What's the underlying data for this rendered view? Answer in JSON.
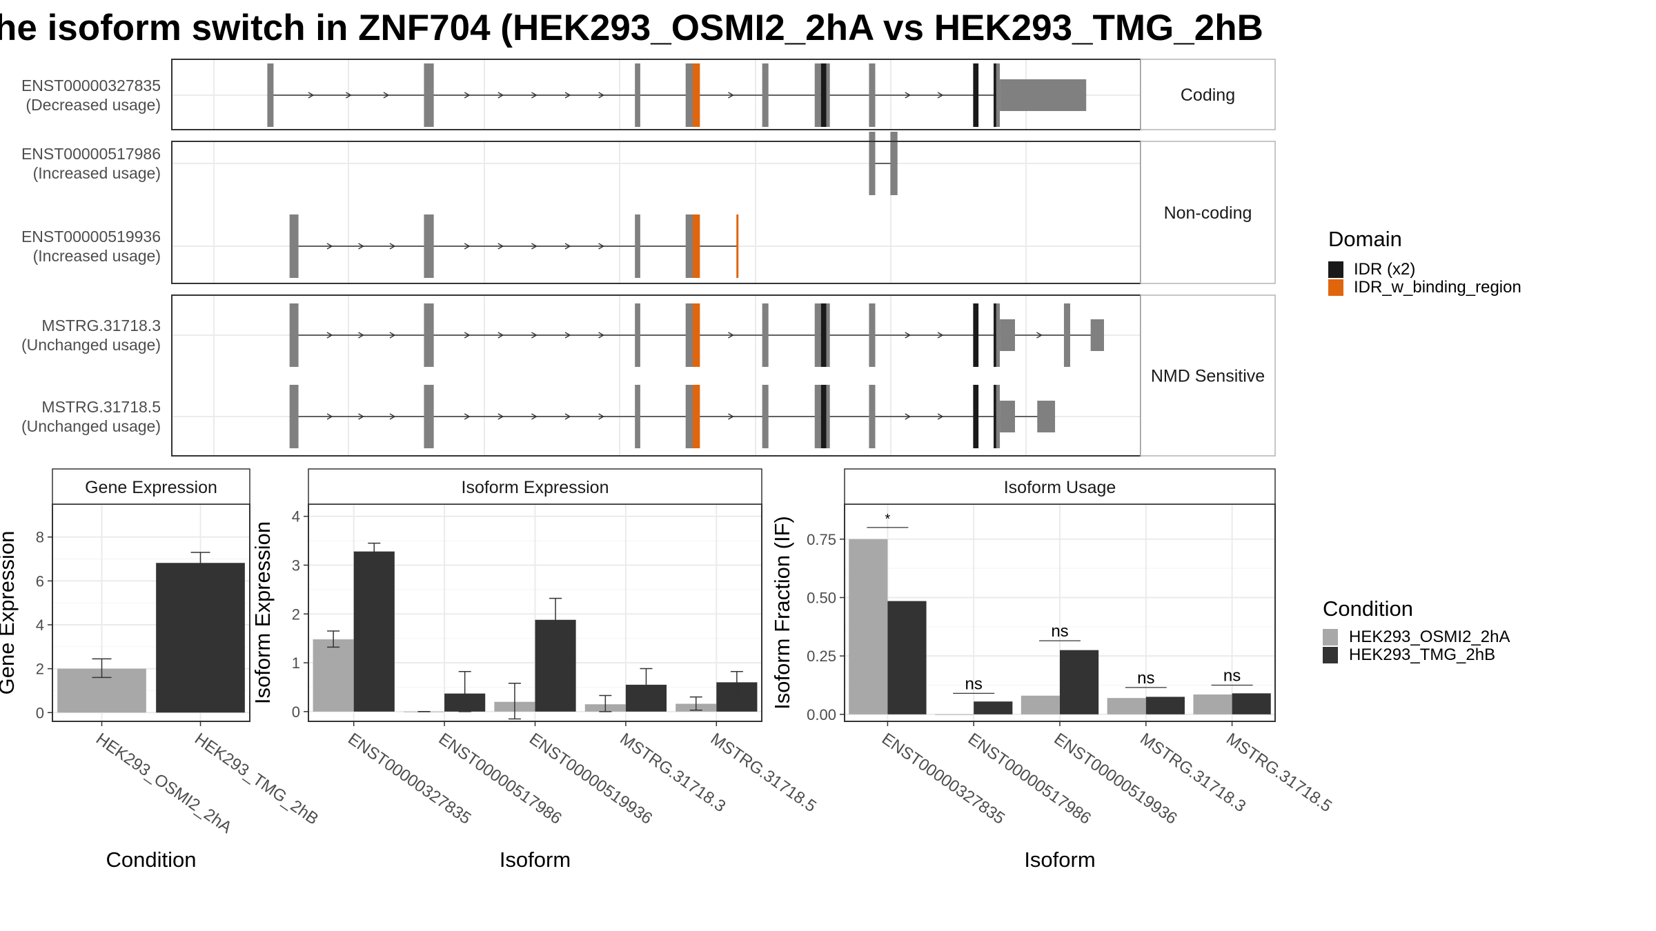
{
  "title": "he isoform switch in ZNF704 (HEK293_OSMI2_2hA vs HEK293_TMG_2hB",
  "colors": {
    "exon": "#808080",
    "idr": "#1a1a1a",
    "idr_binding": "#e0650d",
    "cond_a": "#a8a8a8",
    "cond_b": "#333333",
    "grid": "#ebebeb",
    "border": "#333333",
    "strip_bg": "#ffffff"
  },
  "structure": {
    "domain_legend": {
      "title": "Domain",
      "items": [
        {
          "label": "IDR (x2)",
          "color": "#1a1a1a"
        },
        {
          "label": "IDR_w_binding_region",
          "color": "#e0650d"
        }
      ]
    },
    "groups": [
      {
        "strip": "Coding",
        "isoforms": [
          {
            "id": "ENST00000327835",
            "usage": "(Decreased usage)",
            "exons": [
              [
                0.06,
                0.067,
                "e"
              ],
              [
                0.236,
                0.243,
                "e"
              ],
              [
                0.243,
                0.247,
                "c"
              ],
              [
                0.473,
                0.479,
                "e"
              ],
              [
                0.53,
                0.538,
                "e"
              ],
              [
                0.538,
                0.546,
                "o"
              ],
              [
                0.616,
                0.623,
                "e"
              ],
              [
                0.675,
                0.682,
                "e"
              ],
              [
                0.682,
                0.688,
                "i"
              ],
              [
                0.688,
                0.692,
                "c"
              ],
              [
                0.736,
                0.743,
                "c"
              ],
              [
                0.853,
                0.859,
                "i"
              ],
              [
                0.876,
                0.879,
                "i"
              ],
              [
                0.879,
                0.883,
                "c"
              ],
              [
                0.883,
                0.98,
                "u"
              ]
            ]
          }
        ]
      },
      {
        "strip": "Non-coding",
        "isoforms": [
          {
            "id": "ENST00000517986",
            "usage": "(Increased usage)",
            "exons": [
              [
                0.736,
                0.743,
                "e"
              ],
              [
                0.76,
                0.768,
                "e"
              ]
            ]
          },
          {
            "id": "ENST00000519936",
            "usage": "(Increased usage)",
            "exons": [
              [
                0.085,
                0.095,
                "e"
              ],
              [
                0.236,
                0.243,
                "e"
              ],
              [
                0.243,
                0.247,
                "c"
              ],
              [
                0.473,
                0.479,
                "e"
              ],
              [
                0.53,
                0.538,
                "e"
              ],
              [
                0.538,
                0.546,
                "o"
              ],
              [
                0.587,
                0.589,
                "o"
              ]
            ]
          }
        ]
      },
      {
        "strip": "NMD Sensitive",
        "isoforms": [
          {
            "id": "MSTRG.31718.3",
            "usage": "(Unchanged usage)",
            "exons": [
              [
                0.085,
                0.095,
                "e"
              ],
              [
                0.236,
                0.243,
                "e"
              ],
              [
                0.243,
                0.247,
                "c"
              ],
              [
                0.473,
                0.479,
                "e"
              ],
              [
                0.53,
                0.538,
                "e"
              ],
              [
                0.538,
                0.546,
                "o"
              ],
              [
                0.616,
                0.623,
                "e"
              ],
              [
                0.675,
                0.682,
                "e"
              ],
              [
                0.682,
                0.688,
                "i"
              ],
              [
                0.688,
                0.692,
                "c"
              ],
              [
                0.736,
                0.743,
                "c"
              ],
              [
                0.853,
                0.859,
                "i"
              ],
              [
                0.876,
                0.879,
                "i"
              ],
              [
                0.879,
                0.883,
                "c"
              ],
              [
                0.883,
                0.9,
                "u"
              ],
              [
                0.955,
                0.962,
                "e"
              ],
              [
                0.985,
                1.0,
                "u"
              ]
            ]
          },
          {
            "id": "MSTRG.31718.5",
            "usage": "(Unchanged usage)",
            "exons": [
              [
                0.085,
                0.095,
                "e"
              ],
              [
                0.236,
                0.243,
                "e"
              ],
              [
                0.243,
                0.247,
                "c"
              ],
              [
                0.473,
                0.479,
                "e"
              ],
              [
                0.53,
                0.538,
                "e"
              ],
              [
                0.538,
                0.546,
                "o"
              ],
              [
                0.616,
                0.623,
                "e"
              ],
              [
                0.675,
                0.682,
                "e"
              ],
              [
                0.682,
                0.688,
                "i"
              ],
              [
                0.688,
                0.692,
                "c"
              ],
              [
                0.736,
                0.743,
                "c"
              ],
              [
                0.853,
                0.859,
                "i"
              ],
              [
                0.876,
                0.879,
                "i"
              ],
              [
                0.879,
                0.883,
                "c"
              ],
              [
                0.883,
                0.9,
                "u"
              ],
              [
                0.925,
                0.945,
                "u"
              ]
            ]
          }
        ]
      }
    ]
  },
  "condition_legend": {
    "title": "Condition",
    "items": [
      {
        "label": "HEK293_OSMI2_2hA",
        "color": "#a8a8a8"
      },
      {
        "label": "HEK293_TMG_2hB",
        "color": "#333333"
      }
    ]
  },
  "chart_data": [
    {
      "type": "bar",
      "title": "Gene Expression",
      "xlabel": "Condition",
      "ylabel": "Gene Expression",
      "ylim": [
        -0.4,
        9.5
      ],
      "yticks": [
        0,
        2,
        4,
        6,
        8
      ],
      "yticklabels": [
        "0",
        "2",
        "4",
        "6",
        "8"
      ],
      "categories": [
        "HEK293_OSMI2_2hA",
        "HEK293_TMG_2hB"
      ],
      "values": [
        2.0,
        6.82
      ],
      "err_low": [
        1.6,
        6.35
      ],
      "err_high": [
        2.45,
        7.3
      ]
    },
    {
      "type": "bar",
      "title": "Isoform Expression",
      "xlabel": "Isoform",
      "ylabel": "Isoform Expression",
      "ylim": [
        -0.2,
        4.25
      ],
      "yticks": [
        0,
        1,
        2,
        3,
        4
      ],
      "yticklabels": [
        "0",
        "1",
        "2",
        "3",
        "4"
      ],
      "categories": [
        "ENST00000327835",
        "ENST00000517986",
        "ENST00000519936",
        "MSTRG.31718.3",
        "MSTRG.31718.5"
      ],
      "series": [
        {
          "name": "HEK293_OSMI2_2hA",
          "values": [
            1.48,
            0.0,
            0.2,
            0.15,
            0.16
          ],
          "err_low": [
            1.32,
            0.0,
            -0.15,
            0.0,
            0.03
          ],
          "err_high": [
            1.65,
            0.0,
            0.58,
            0.33,
            0.3
          ]
        },
        {
          "name": "HEK293_TMG_2hB",
          "values": [
            3.28,
            0.37,
            1.88,
            0.55,
            0.6
          ],
          "err_low": [
            3.1,
            0.0,
            1.45,
            0.2,
            0.38
          ],
          "err_high": [
            3.45,
            0.82,
            2.32,
            0.88,
            0.82
          ]
        }
      ]
    },
    {
      "type": "bar",
      "title": "Isoform Usage",
      "xlabel": "Isoform",
      "ylabel": "Isoform Fraction (IF)",
      "ylim": [
        -0.03,
        0.9
      ],
      "yticks": [
        0,
        0.25,
        0.5,
        0.75
      ],
      "yticklabels": [
        "0.00",
        "0.25",
        "0.50",
        "0.75"
      ],
      "categories": [
        "ENST00000327835",
        "ENST00000517986",
        "ENST00000519936",
        "MSTRG.31718.3",
        "MSTRG.31718.5"
      ],
      "series": [
        {
          "name": "HEK293_OSMI2_2hA",
          "values": [
            0.75,
            0.0,
            0.08,
            0.07,
            0.085
          ]
        },
        {
          "name": "HEK293_TMG_2hB",
          "values": [
            0.485,
            0.055,
            0.275,
            0.075,
            0.09
          ]
        }
      ],
      "annotations": [
        {
          "category": "ENST00000327835",
          "label": "*",
          "y": 0.8
        },
        {
          "category": "ENST00000517986",
          "label": "ns",
          "y": 0.09
        },
        {
          "category": "ENST00000519936",
          "label": "ns",
          "y": 0.315
        },
        {
          "category": "MSTRG.31718.3",
          "label": "ns",
          "y": 0.115
        },
        {
          "category": "MSTRG.31718.5",
          "label": "ns",
          "y": 0.125
        }
      ]
    }
  ]
}
